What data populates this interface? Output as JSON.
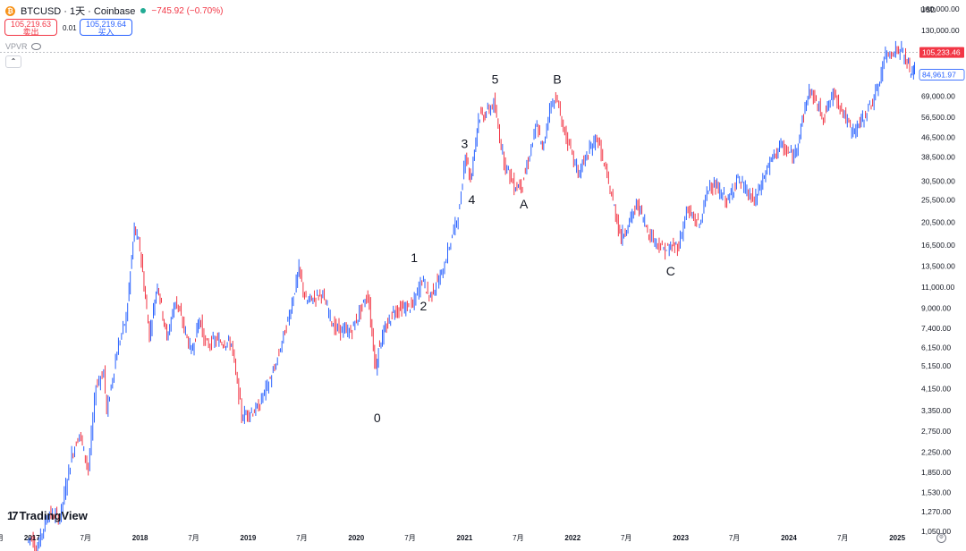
{
  "header": {
    "coin_glyph": "₿",
    "symbol": "BTCUSD · 1天 · Coinbase",
    "change": "−745.92 (−0.70%)",
    "sell_price": "105,219.63",
    "sell_label": "卖出",
    "spread": "0.01",
    "buy_price": "105,219.64",
    "buy_label": "买入",
    "indicator": "VPVR",
    "collapse_glyph": "⌃"
  },
  "brand": {
    "mark": "17",
    "name": "TradingView"
  },
  "price_axis": {
    "currency": "USD"
  },
  "colors": {
    "up": "#2962ff",
    "down": "#f23645",
    "last_price_bg": "#f23645",
    "current_tag_border": "#2962ff"
  },
  "chart_data": {
    "type": "line",
    "scale": "log",
    "ylim": [
      1050,
      160000
    ],
    "x_range": [
      "2016-09-15",
      "2025-03-05"
    ],
    "y_ticks": [
      1050,
      1270,
      1530,
      1850,
      2250,
      2750,
      3350,
      4150,
      5150,
      6150,
      7400,
      9000,
      11000,
      13500,
      16500,
      20500,
      25500,
      30500,
      38500,
      46500,
      56500,
      69000,
      84961.97,
      105233.46,
      130000,
      160000
    ],
    "y_tick_labels": [
      "1,050.00",
      "1,270.00",
      "1,530.00",
      "1,850.00",
      "2,250.00",
      "2,750.00",
      "3,350.00",
      "4,150.00",
      "5,150.00",
      "6,150.00",
      "7,400.00",
      "9,000.00",
      "11,000.00",
      "13,500.00",
      "16,500.00",
      "20,500.00",
      "25,500.00",
      "30,500.00",
      "38,500.00",
      "46,500.00",
      "56,500.00",
      "69,000.00",
      "84,961.97",
      "105,233.46",
      "130,000.00",
      "160,000.00"
    ],
    "last_price": 105233.46,
    "last_price_label": "105,233.46",
    "current_tag": 84961.97,
    "current_tag_label": "84,961.97",
    "x_ticks": [
      {
        "date": "2016-09-15",
        "label": "月"
      },
      {
        "date": "2017-01-01",
        "label": "2017"
      },
      {
        "date": "2017-07-01",
        "label": "7月"
      },
      {
        "date": "2018-01-01",
        "label": "2018"
      },
      {
        "date": "2018-07-01",
        "label": "7月"
      },
      {
        "date": "2019-01-01",
        "label": "2019"
      },
      {
        "date": "2019-07-01",
        "label": "7月"
      },
      {
        "date": "2020-01-01",
        "label": "2020"
      },
      {
        "date": "2020-07-01",
        "label": "7月"
      },
      {
        "date": "2021-01-01",
        "label": "2021"
      },
      {
        "date": "2021-07-01",
        "label": "7月"
      },
      {
        "date": "2022-01-01",
        "label": "2022"
      },
      {
        "date": "2022-07-01",
        "label": "7月"
      },
      {
        "date": "2023-01-01",
        "label": "2023"
      },
      {
        "date": "2023-07-01",
        "label": "7月"
      },
      {
        "date": "2024-01-01",
        "label": "2024"
      },
      {
        "date": "2024-07-01",
        "label": "7月"
      },
      {
        "date": "2025-01-01",
        "label": "2025"
      }
    ],
    "series": [
      {
        "x": [
          "2016-12-20",
          "2017-01-05",
          "2017-01-20",
          "2017-03-01",
          "2017-04-10",
          "2017-05-20",
          "2017-06-15",
          "2017-07-15",
          "2017-08-10",
          "2017-09-05",
          "2017-09-15",
          "2017-10-20",
          "2017-11-20",
          "2017-12-17",
          "2018-01-05",
          "2018-02-06",
          "2018-03-05",
          "2018-04-06",
          "2018-05-05",
          "2018-06-28",
          "2018-07-25",
          "2018-08-15",
          "2018-09-20",
          "2018-11-10",
          "2018-12-15",
          "2019-02-05",
          "2019-04-05",
          "2019-05-20",
          "2019-06-26",
          "2019-07-20",
          "2019-09-10",
          "2019-10-25",
          "2019-12-18",
          "2020-02-14",
          "2020-03-12",
          "2020-03-20",
          "2020-05-10",
          "2020-07-15",
          "2020-08-15",
          "2020-09-08",
          "2020-10-20",
          "2020-11-10",
          "2020-12-20",
          "2021-01-08",
          "2021-01-25",
          "2021-02-21",
          "2021-03-15",
          "2021-04-14",
          "2021-05-19",
          "2021-06-22",
          "2021-07-20",
          "2021-09-07",
          "2021-09-25",
          "2021-10-20",
          "2021-11-10",
          "2021-12-10",
          "2022-01-24",
          "2022-03-28",
          "2022-05-12",
          "2022-06-18",
          "2022-08-13",
          "2022-09-20",
          "2022-11-09",
          "2022-12-30",
          "2023-01-25",
          "2023-03-10",
          "2023-04-14",
          "2023-06-15",
          "2023-07-13",
          "2023-09-11",
          "2023-10-24",
          "2023-12-05",
          "2024-01-23",
          "2024-03-14",
          "2024-05-01",
          "2024-06-07",
          "2024-08-05",
          "2024-09-06",
          "2024-10-29",
          "2024-11-22",
          "2024-12-17",
          "2025-01-20",
          "2025-02-03",
          "2025-02-25",
          "2025-03-04"
        ],
        "y": [
          950,
          1000,
          870,
          1250,
          1200,
          2200,
          2700,
          1900,
          4300,
          4900,
          3300,
          6000,
          8200,
          19400,
          16000,
          6900,
          11500,
          6700,
          9800,
          5900,
          8200,
          6300,
          6600,
          6400,
          3200,
          3400,
          5000,
          8000,
          13000,
          9500,
          10400,
          7400,
          7150,
          10300,
          4900,
          6200,
          8800,
          9200,
          12000,
          10000,
          12500,
          15500,
          23500,
          40800,
          30500,
          57000,
          58000,
          64500,
          37000,
          29000,
          29800,
          52700,
          40500,
          62000,
          69000,
          48000,
          33000,
          47000,
          28000,
          17700,
          24500,
          18500,
          15700,
          16500,
          23000,
          20000,
          30500,
          25000,
          31500,
          25000,
          34500,
          43000,
          38500,
          73500,
          57000,
          71500,
          49000,
          54000,
          72000,
          99500,
          107000,
          108000,
          97000,
          85000,
          92000
        ]
      }
    ],
    "annotations": [
      {
        "label": "0",
        "date": "2020-03-12",
        "value": 3000
      },
      {
        "label": "1",
        "date": "2020-07-15",
        "value": 14000
      },
      {
        "label": "2",
        "date": "2020-08-15",
        "value": 8800
      },
      {
        "label": "3",
        "date": "2021-01-01",
        "value": 42000
      },
      {
        "label": "4",
        "date": "2021-01-25",
        "value": 24500
      },
      {
        "label": "5",
        "date": "2021-04-14",
        "value": 78000
      },
      {
        "label": "A",
        "date": "2021-07-20",
        "value": 23500
      },
      {
        "label": "B",
        "date": "2021-11-10",
        "value": 78000
      },
      {
        "label": "C",
        "date": "2022-11-28",
        "value": 12300
      }
    ]
  }
}
